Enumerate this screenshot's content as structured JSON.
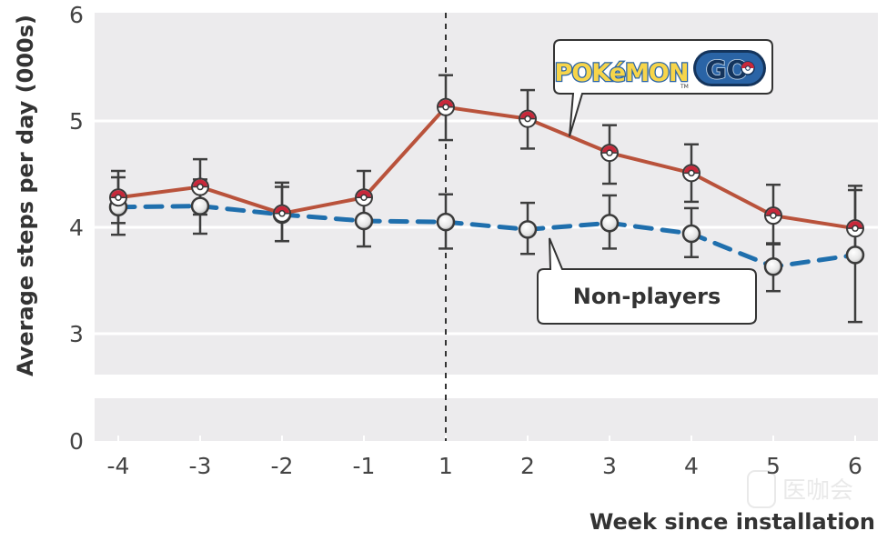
{
  "chart_data": {
    "type": "line",
    "title": "",
    "xlabel": "Week since installation",
    "ylabel": "Average steps per day (000s)",
    "x": [
      -4,
      -3,
      -2,
      -1,
      1,
      2,
      3,
      4,
      5,
      6
    ],
    "x_tick_labels": [
      "-4",
      "-3",
      "-2",
      "-1",
      "1",
      "2",
      "3",
      "4",
      "5",
      "6"
    ],
    "y_ticks": [
      0,
      3,
      4,
      5,
      6
    ],
    "y_tick_labels": [
      "0",
      "3",
      "4",
      "5",
      "6"
    ],
    "ylim": [
      0,
      6
    ],
    "y_axis_break": [
      0,
      3
    ],
    "grid": true,
    "vertical_reference_line": {
      "x": 1,
      "style": "dashed"
    },
    "series": [
      {
        "name": "Pokémon GO players",
        "color": "#b9523b",
        "line_style": "solid",
        "marker": "pokeball",
        "values": [
          4.28,
          4.38,
          4.13,
          4.28,
          5.13,
          5.02,
          4.7,
          4.51,
          4.11,
          3.99
        ],
        "error_low": [
          4.04,
          4.12,
          3.87,
          4.02,
          4.82,
          4.74,
          4.41,
          4.24,
          3.84,
          3.7
        ],
        "error_high": [
          4.53,
          4.64,
          4.42,
          4.53,
          5.43,
          5.29,
          4.96,
          4.78,
          4.4,
          4.39
        ]
      },
      {
        "name": "Non-players",
        "color": "#1f6fad",
        "line_style": "dashed",
        "marker": "white-circle",
        "values": [
          4.19,
          4.2,
          4.12,
          4.06,
          4.05,
          3.98,
          4.04,
          3.94,
          3.63,
          3.74
        ],
        "error_low": [
          3.93,
          3.94,
          3.87,
          3.82,
          3.8,
          3.75,
          3.8,
          3.72,
          3.4,
          3.11
        ],
        "error_high": [
          4.47,
          4.45,
          4.38,
          4.31,
          4.31,
          4.23,
          4.3,
          4.18,
          3.85,
          4.35
        ]
      }
    ],
    "annotations": [
      {
        "text": "Pokémon GO",
        "type": "logo-callout",
        "points_to_series": "Pokémon GO players"
      },
      {
        "text": "Non-players",
        "type": "callout",
        "points_to_series": "Non-players"
      }
    ]
  },
  "logo": {
    "word1": "POKéMON",
    "word2": "GO",
    "trademark": "TM"
  },
  "watermark": {
    "text": "医咖会"
  },
  "colors": {
    "plot_bg": "#ecebed",
    "grid": "#ffffff",
    "axis_text": "#444444",
    "errorbar": "#3e3e3e",
    "pokeball_red": "#c8283a",
    "logo_yellow": "#f7d54a",
    "logo_blue": "#2a64a6",
    "logo_dark": "#14345c"
  }
}
